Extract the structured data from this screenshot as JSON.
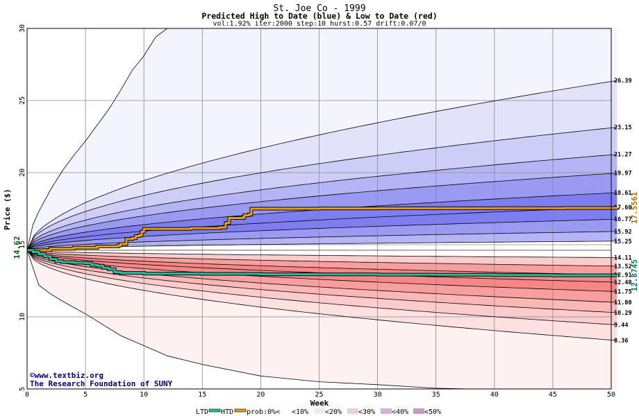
{
  "chart_data": {
    "type": "area",
    "title": "St. Joe Co - 1999",
    "subtitle": "Predicted High to Date (blue) &  Low to Date (red)",
    "params": "vol:1.92% iter:2000 step:10 hurst:0.57 drift:0.07/0",
    "xlabel": "Week",
    "ylabel": "Price ($)",
    "xlim": [
      0,
      50
    ],
    "ylim": [
      5,
      30
    ],
    "x_ticks": [
      0,
      5,
      10,
      15,
      20,
      25,
      30,
      35,
      40,
      45,
      50
    ],
    "y_ticks": [
      5,
      10,
      15,
      20,
      25,
      30
    ],
    "start_price": 14.62,
    "start_price_label": "14.62",
    "band_fills_high": [
      "#f4f4fe",
      "#e2e2fb",
      "#cdcdf8",
      "#b4b4f6",
      "#9a9af3",
      "#7e7ef0"
    ],
    "band_fills_low": [
      "#fef1f1",
      "#fde0e0",
      "#fccccc",
      "#fbb6b6",
      "#f99e9e",
      "#f78787"
    ],
    "high_quantiles": [
      {
        "label": "26.39",
        "end": 26.39,
        "curv": 0.55
      },
      {
        "label": "23.15",
        "end": 23.15,
        "curv": 0.5
      },
      {
        "label": "21.27",
        "end": 21.27,
        "curv": 0.5
      },
      {
        "label": "19.97",
        "end": 19.97,
        "curv": 0.5
      },
      {
        "label": "18.61",
        "end": 18.61,
        "curv": 0.5
      },
      {
        "label": "17.60",
        "end": 17.6,
        "curv": 0.5
      },
      {
        "label": "16.77",
        "end": 16.77,
        "curv": 0.5
      },
      {
        "label": "15.92",
        "end": 15.92,
        "curv": 0.5
      },
      {
        "label": "15.25",
        "end": 15.25,
        "curv": 0.5
      }
    ],
    "low_quantiles": [
      {
        "label": "14.11",
        "end": 14.11,
        "curv": 0.5
      },
      {
        "label": "13.52",
        "end": 13.52,
        "curv": 0.5
      },
      {
        "label": "12.91",
        "end": 12.91,
        "curv": 0.5
      },
      {
        "label": "12.40",
        "end": 12.4,
        "curv": 0.5
      },
      {
        "label": "11.75",
        "end": 11.75,
        "curv": 0.5
      },
      {
        "label": "11.00",
        "end": 11.0,
        "curv": 0.5
      },
      {
        "label": "10.29",
        "end": 10.29,
        "curv": 0.5
      },
      {
        "label": "9.44",
        "end": 9.44,
        "curv": 0.5
      },
      {
        "label": "8.36",
        "end": 8.36,
        "curv": 0.5
      }
    ],
    "max_envelope": [
      [
        0,
        14.62
      ],
      [
        0.5,
        16.4
      ],
      [
        1,
        17.3
      ],
      [
        2,
        18.8
      ],
      [
        3,
        20.1
      ],
      [
        4,
        21.2
      ],
      [
        5,
        22.2
      ],
      [
        6,
        23.3
      ],
      [
        7,
        24.4
      ],
      [
        8,
        25.7
      ],
      [
        9,
        27.1
      ],
      [
        10,
        28.1
      ],
      [
        11,
        29.4
      ],
      [
        12,
        30.0
      ]
    ],
    "min_envelope": [
      [
        0,
        14.62
      ],
      [
        1,
        12.2
      ],
      [
        2,
        11.6
      ],
      [
        3,
        11.1
      ],
      [
        5,
        10.2
      ],
      [
        8,
        8.7
      ],
      [
        10,
        8.0
      ],
      [
        12,
        7.3
      ],
      [
        15,
        6.7
      ],
      [
        20,
        5.9
      ],
      [
        25,
        5.5
      ],
      [
        30,
        5.3
      ],
      [
        35,
        5.05
      ],
      [
        38,
        5.0
      ]
    ],
    "htd_series": {
      "name": "HTD",
      "final_label": "17.5561",
      "points": [
        [
          0,
          14.62
        ],
        [
          2,
          14.72
        ],
        [
          4,
          14.8
        ],
        [
          6,
          14.88
        ],
        [
          7.8,
          14.95
        ],
        [
          8,
          15.05
        ],
        [
          8.5,
          15.4
        ],
        [
          9,
          15.45
        ],
        [
          9.3,
          15.6
        ],
        [
          9.6,
          15.65
        ],
        [
          9.8,
          15.9
        ],
        [
          10,
          16.1
        ],
        [
          12,
          16.1
        ],
        [
          14,
          16.15
        ],
        [
          16.5,
          16.2
        ],
        [
          17,
          16.5
        ],
        [
          17.3,
          16.85
        ],
        [
          18.5,
          16.9
        ],
        [
          18.6,
          17.05
        ],
        [
          19,
          17.1
        ],
        [
          19.2,
          17.5
        ],
        [
          25,
          17.52
        ],
        [
          30,
          17.53
        ],
        [
          40,
          17.54
        ],
        [
          46,
          17.55
        ],
        [
          50.5,
          17.556
        ]
      ]
    },
    "ltd_series": {
      "name": "LTD",
      "final_label": "12.8745",
      "points": [
        [
          0,
          14.62
        ],
        [
          0.5,
          14.5
        ],
        [
          1,
          14.35
        ],
        [
          1.5,
          14.2
        ],
        [
          2,
          14.0
        ],
        [
          2.5,
          13.85
        ],
        [
          3,
          13.8
        ],
        [
          4,
          13.75
        ],
        [
          5,
          13.72
        ],
        [
          5.5,
          13.6
        ],
        [
          6,
          13.55
        ],
        [
          6.5,
          13.4
        ],
        [
          7,
          13.3
        ],
        [
          7.5,
          13.1
        ],
        [
          8,
          13.05
        ],
        [
          10,
          13.0
        ],
        [
          15,
          12.98
        ],
        [
          20,
          12.95
        ],
        [
          25,
          12.94
        ],
        [
          30,
          12.93
        ],
        [
          35,
          12.92
        ],
        [
          40,
          12.9
        ],
        [
          45,
          12.88
        ],
        [
          50.5,
          12.8745
        ]
      ]
    }
  },
  "credits": {
    "line1": "©www.textbiz.org",
    "line2": "The Research Foundation of SUNY"
  },
  "legend": {
    "ltd": "LTD",
    "htd": "HTD",
    "prob": "prob:0%<",
    "b10": "<10%",
    "b20": "<20%",
    "b30": "<30%",
    "b40": "<40%",
    "b50": "<50%",
    "htd_color": "#e8a010",
    "ltd_color": "#20c0a0"
  }
}
